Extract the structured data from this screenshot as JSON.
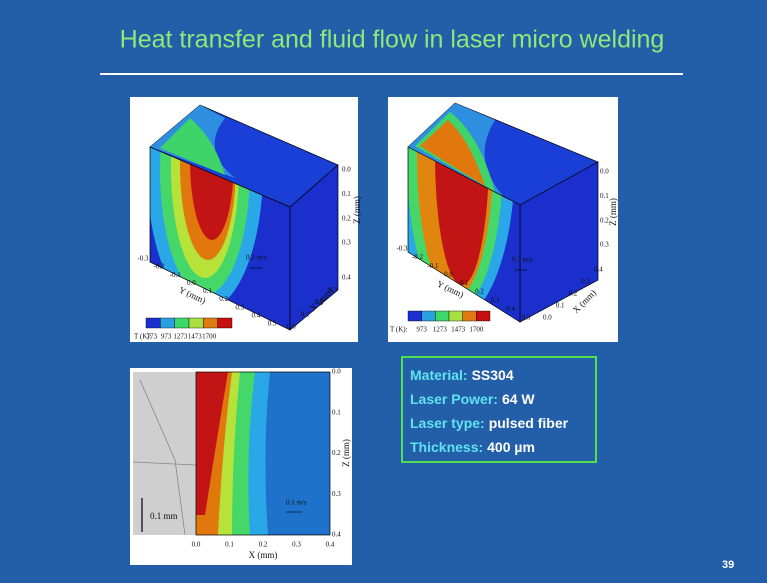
{
  "title": "Heat transfer and fluid flow in laser micro welding",
  "figures": [
    {
      "z_label": "Z (mm)",
      "z_ticks": [
        "0.0",
        "0.1",
        "0.2",
        "0.3"
      ],
      "x_label": "X (mm)",
      "x_ticks": [
        "0.0",
        "0.1",
        "0.2",
        "0.3",
        "0.4"
      ],
      "y_label": "Y (mm)",
      "y_ticks": [
        "-0.3",
        "-0.2",
        "-0.1",
        "0.0",
        "0.1",
        "0.2",
        "0.3",
        "0.4",
        "0.5"
      ],
      "velocity": "0.2 m/s",
      "legend_title": "T (K):",
      "legend_values": [
        "773",
        "973",
        "1273",
        "1473",
        "1700"
      ]
    },
    {
      "z_label": "Z (mm)",
      "z_ticks": [
        "0.0",
        "0.1",
        "0.2",
        "0.3"
      ],
      "x_label": "X (mm)",
      "x_ticks": [
        "0.0",
        "0.1",
        "0.2",
        "0.3",
        "0.4"
      ],
      "y_label": "Y (mm)",
      "y_ticks": [
        "-0.3",
        "-0.2",
        "-0.1",
        "0.0",
        "0.1",
        "0.2",
        "0.3",
        "0.4",
        "0.5"
      ],
      "velocity": "0.3 m/s",
      "legend_title": "T (K):",
      "legend_values": [
        "973",
        "1273",
        "1473",
        "1700"
      ]
    },
    {
      "z_label": "Z (mm)",
      "z_ticks": [
        "0.0",
        "0.1",
        "0.2",
        "0.3",
        "0.4"
      ],
      "x_label": "X (mm)",
      "x_ticks": [
        "0.0",
        "0.1",
        "0.2",
        "0.3",
        "0.4"
      ],
      "velocity": "0.1 m/s",
      "scale_bar": "0.1 mm"
    }
  ],
  "info_box": {
    "rows": [
      {
        "label": "Material:",
        "value": "SS304"
      },
      {
        "label": "Laser Power:",
        "value": "64 W"
      },
      {
        "label": "Laser type:",
        "value": "pulsed fiber"
      },
      {
        "label": "Thickness:",
        "value": "400 µm"
      }
    ]
  },
  "page_number": "39"
}
